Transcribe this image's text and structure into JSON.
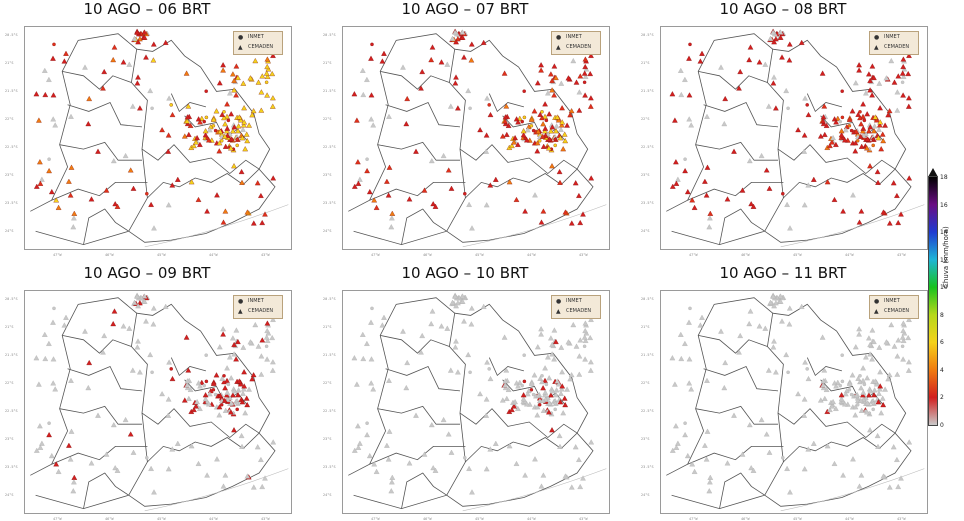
{
  "panels": [
    {
      "title": "10 AGO – 06 BRT",
      "intensity": 1.0
    },
    {
      "title": "10 AGO – 07 BRT",
      "intensity": 0.8
    },
    {
      "title": "10 AGO – 08 BRT",
      "intensity": 0.6
    },
    {
      "title": "10 AGO – 09 BRT",
      "intensity": 0.22
    },
    {
      "title": "10 AGO – 10 BRT",
      "intensity": 0.15
    },
    {
      "title": "10 AGO – 11 BRT",
      "intensity": 0.12
    }
  ],
  "legend": {
    "item1": "INMET",
    "item2": "CEMADEN"
  },
  "colorbar": {
    "label": "Chuva (mm/hora)",
    "ticks": [
      "18",
      "16",
      "14",
      "12",
      "10",
      "8",
      "6",
      "4",
      "2",
      "0"
    ],
    "colors": [
      "#000000",
      "#6a0d83",
      "#1f3bd1",
      "#1fb5d6",
      "#18c21e",
      "#b6d81b",
      "#f5d21b",
      "#f07b10",
      "#d21f1f",
      "#c9c9c9"
    ]
  },
  "axis_ticks": {
    "y": [
      "20.5°S",
      "21°S",
      "21.5°S",
      "22°S",
      "22.5°S",
      "23°S",
      "23.5°S",
      "24°S"
    ],
    "x": [
      "47°W",
      "46°W",
      "45°W",
      "44°W",
      "43°W"
    ]
  }
}
